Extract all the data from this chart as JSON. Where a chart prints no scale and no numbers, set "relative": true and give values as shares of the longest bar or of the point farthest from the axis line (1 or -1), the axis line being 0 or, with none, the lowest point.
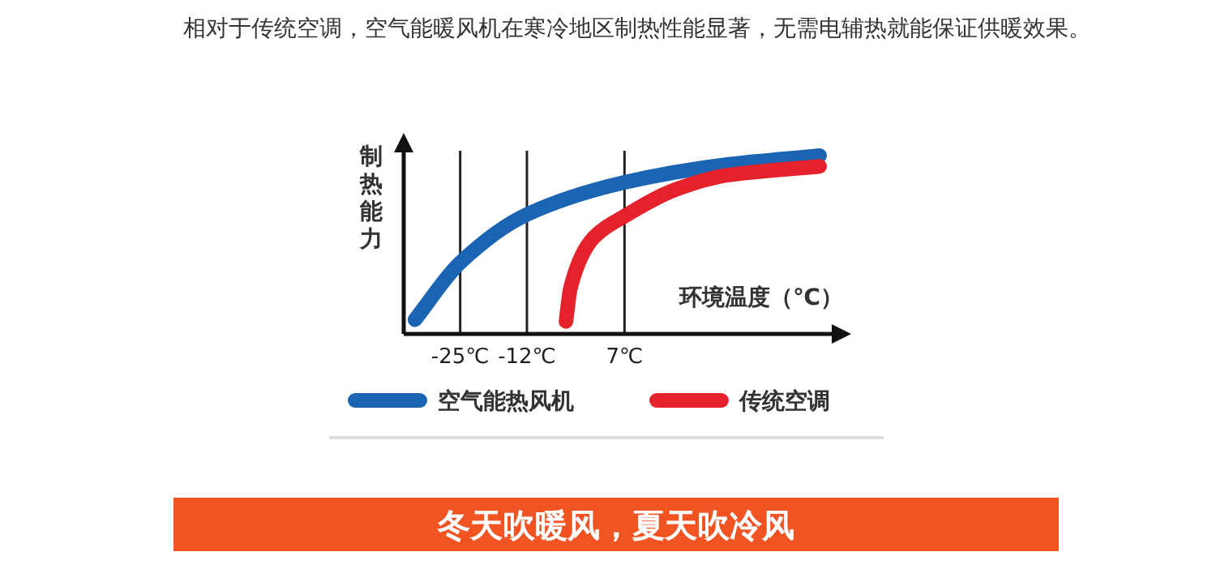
{
  "chart_data": {
    "type": "line",
    "title": "相对于传统空调，空气能暖风机在寒冷地区制热性能显著，无需电辅热就能保证供暖效果。",
    "xlabel": "环境温度（℃）",
    "ylabel": "制热能力",
    "relative": true,
    "xlim": [
      -36,
      48
    ],
    "xticks": [
      {
        "value": -25,
        "label": "-25℃"
      },
      {
        "value": -12,
        "label": "-12℃"
      },
      {
        "value": 7,
        "label": "7℃"
      }
    ],
    "grid": "x",
    "legend": "bottom",
    "series": [
      {
        "name": "空气能热风机",
        "color": "#1b63b3",
        "x": [
          -33.8,
          -25,
          -12,
          7,
          27,
          45
        ],
        "values": [
          0.08,
          0.4,
          0.67,
          0.85,
          0.95,
          1
        ]
      },
      {
        "name": "传统空调",
        "color": "#e5212b",
        "x": [
          -4.4,
          -3.5,
          1,
          7,
          17,
          27,
          45
        ],
        "values": [
          0.07,
          0.26,
          0.54,
          0.66,
          0.81,
          0.89,
          0.94
        ]
      }
    ],
    "annotations": [
      "冬天吹暖风，夏天吹冷风"
    ]
  }
}
